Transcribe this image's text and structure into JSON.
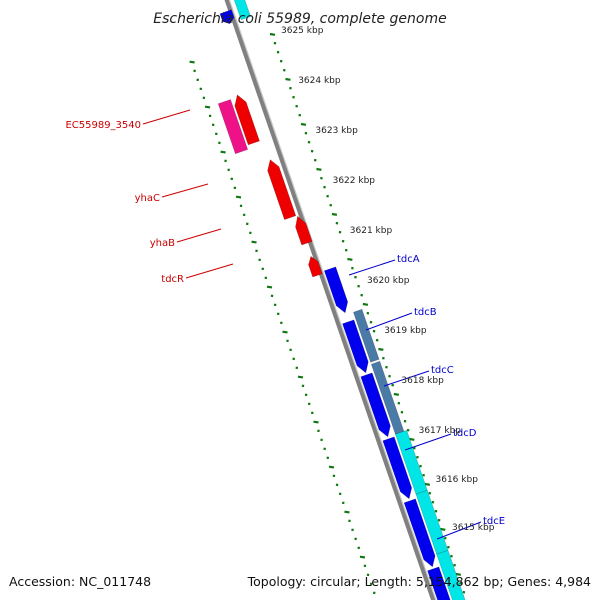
{
  "title": "Escherichia coli 55989, complete genome",
  "accession": "Accession: NC_011748",
  "summary": "Topology: circular; Length: 5,154,862 bp; Genes: 4,984",
  "colors": {
    "forward_gene": "#0000ee",
    "reverse_gene": "#ee0000",
    "reverse_pseudo": "#ee1188",
    "operon_dark": "#4a7aa6",
    "operon_light": "#00e6e6",
    "backbone": "#808080",
    "ticks": "#107810",
    "forward_label": "#0000cc",
    "reverse_label": "#cc0000"
  },
  "ticks": [
    {
      "label": "3625 kbp"
    },
    {
      "label": "3624 kbp"
    },
    {
      "label": "3623 kbp"
    },
    {
      "label": "3622 kbp"
    },
    {
      "label": "3621 kbp"
    },
    {
      "label": "3620 kbp"
    },
    {
      "label": "3619 kbp"
    },
    {
      "label": "3618 kbp"
    },
    {
      "label": "3617 kbp"
    },
    {
      "label": "3616 kbp"
    },
    {
      "label": "3615 kbp"
    }
  ],
  "gene_labels": [
    {
      "name": "EC55989_3540",
      "strand": "reverse"
    },
    {
      "name": "yhaC",
      "strand": "reverse"
    },
    {
      "name": "yhaB",
      "strand": "reverse"
    },
    {
      "name": "tdcR",
      "strand": "reverse"
    },
    {
      "name": "tdcA",
      "strand": "forward"
    },
    {
      "name": "tdcB",
      "strand": "forward"
    },
    {
      "name": "tdcC",
      "strand": "forward"
    },
    {
      "name": "tdcD",
      "strand": "forward"
    },
    {
      "name": "tdcE",
      "strand": "forward"
    }
  ]
}
